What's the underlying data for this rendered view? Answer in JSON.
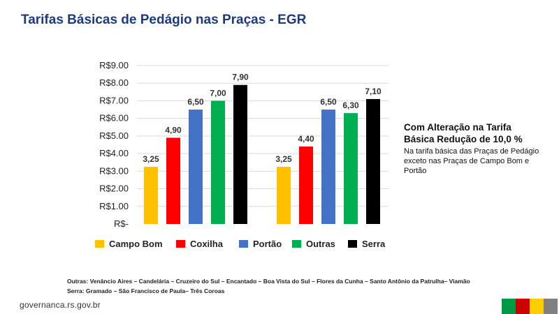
{
  "title": "Tarifas Básicas de Pedágio nas Praças  - EGR",
  "chart_data": {
    "type": "bar",
    "groups": 2,
    "series": [
      {
        "name": "Campo Bom",
        "color": "#ffc000",
        "values": [
          3.25,
          3.25
        ],
        "labels": [
          "3,25",
          "3,25"
        ]
      },
      {
        "name": "Coxilha",
        "color": "#ff0000",
        "values": [
          4.9,
          4.4
        ],
        "labels": [
          "4,90",
          "4,40"
        ]
      },
      {
        "name": "Portão",
        "color": "#4472c4",
        "values": [
          6.5,
          6.5
        ],
        "labels": [
          "6,50",
          "6,50"
        ]
      },
      {
        "name": "Outras",
        "color": "#00b050",
        "values": [
          7.0,
          6.3
        ],
        "labels": [
          "7,00",
          "6,30"
        ]
      },
      {
        "name": "Serra",
        "color": "#000000",
        "values": [
          7.9,
          7.1
        ],
        "labels": [
          "7,90",
          "7,10"
        ]
      }
    ],
    "ylim": [
      0,
      9
    ],
    "yticks": [
      "R$-",
      "R$1.00",
      "R$2.00",
      "R$3.00",
      "R$4.00",
      "R$5.00",
      "R$6.00",
      "R$7.00",
      "R$8.00",
      "R$9.00"
    ],
    "grid": true,
    "legend": "bottom"
  },
  "note": {
    "heading": "Com Alteração na Tarifa Básica Redução de 10,0 %",
    "body": "Na tarifa básica das Praças de Pedágio exceto nas Praças de Campo Bom e Portão"
  },
  "footnote": {
    "line1": "Outras: Venâncio Aires – Candelária – Cruzeiro do Sul – Encantado – Boa Vista do Sul – Flores da Cunha – Santo Antônio da Patrulha– Viamão",
    "line2": "Serra: Gramado – São Francisco de Paula– Três Coroas"
  },
  "website": "governanca.rs.gov.br",
  "flag_colors": [
    "#009a44",
    "#cc0000",
    "#ffcc00",
    "#808080"
  ]
}
